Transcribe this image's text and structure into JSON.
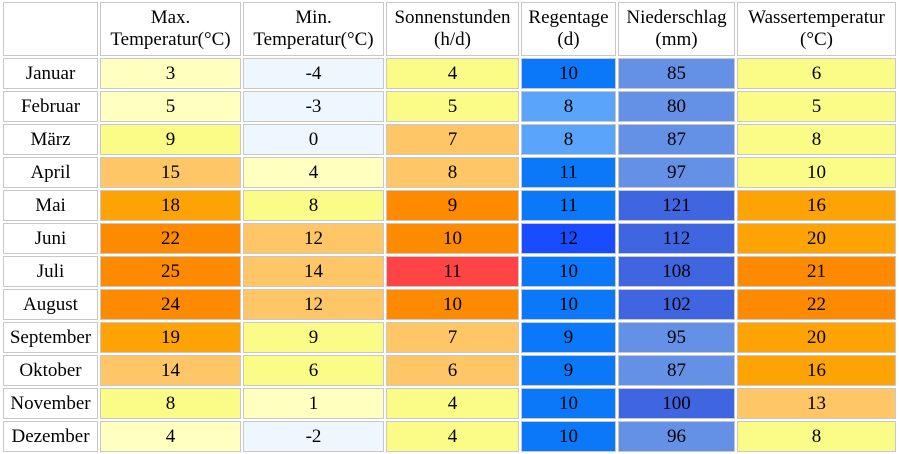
{
  "headers": [
    {
      "line1": "Max.",
      "line2": "Temperatur(°C)"
    },
    {
      "line1": "Min.",
      "line2": "Temperatur(°C)"
    },
    {
      "line1": "Sonnenstunden",
      "line2": "(h/d)"
    },
    {
      "line1": "Regentage",
      "line2": "(d)"
    },
    {
      "line1": "Niederschlag",
      "line2": "(mm)"
    },
    {
      "line1": "Wassertemperatur",
      "line2": "(°C)"
    }
  ],
  "rows": [
    {
      "month": "Januar",
      "cells": [
        {
          "v": "3",
          "c": "#ffffbf"
        },
        {
          "v": "-4",
          "c": "#eef6fe"
        },
        {
          "v": "4",
          "c": "#fbfb88"
        },
        {
          "v": "10",
          "c": "#0a78f8"
        },
        {
          "v": "85",
          "c": "#6491e6"
        },
        {
          "v": "6",
          "c": "#fbfb88"
        }
      ]
    },
    {
      "month": "Februar",
      "cells": [
        {
          "v": "5",
          "c": "#ffffbf"
        },
        {
          "v": "-3",
          "c": "#eef6fe"
        },
        {
          "v": "5",
          "c": "#fbfb88"
        },
        {
          "v": "8",
          "c": "#5aa5fb"
        },
        {
          "v": "80",
          "c": "#6491e6"
        },
        {
          "v": "5",
          "c": "#fbfb88"
        }
      ]
    },
    {
      "month": "März",
      "cells": [
        {
          "v": "9",
          "c": "#fbfb88"
        },
        {
          "v": "0",
          "c": "#eef6fe"
        },
        {
          "v": "7",
          "c": "#fec666"
        },
        {
          "v": "8",
          "c": "#5aa5fb"
        },
        {
          "v": "87",
          "c": "#6491e6"
        },
        {
          "v": "8",
          "c": "#fbfb88"
        }
      ]
    },
    {
      "month": "April",
      "cells": [
        {
          "v": "15",
          "c": "#fec666"
        },
        {
          "v": "4",
          "c": "#ffffbf"
        },
        {
          "v": "8",
          "c": "#fec666"
        },
        {
          "v": "11",
          "c": "#0a78f8"
        },
        {
          "v": "97",
          "c": "#6491e6"
        },
        {
          "v": "10",
          "c": "#fbfb88"
        }
      ]
    },
    {
      "month": "Mai",
      "cells": [
        {
          "v": "18",
          "c": "#fea305"
        },
        {
          "v": "8",
          "c": "#fbfb88"
        },
        {
          "v": "9",
          "c": "#fe8a00"
        },
        {
          "v": "11",
          "c": "#0a78f8"
        },
        {
          "v": "121",
          "c": "#3f66e0"
        },
        {
          "v": "16",
          "c": "#fea305"
        }
      ]
    },
    {
      "month": "Juni",
      "cells": [
        {
          "v": "22",
          "c": "#fe8a00"
        },
        {
          "v": "12",
          "c": "#fec666"
        },
        {
          "v": "10",
          "c": "#fe8a00"
        },
        {
          "v": "12",
          "c": "#1a4cff"
        },
        {
          "v": "112",
          "c": "#3f66e0"
        },
        {
          "v": "20",
          "c": "#fea305"
        }
      ]
    },
    {
      "month": "Juli",
      "cells": [
        {
          "v": "25",
          "c": "#fe8a00"
        },
        {
          "v": "14",
          "c": "#fec666"
        },
        {
          "v": "11",
          "c": "#fe4444"
        },
        {
          "v": "10",
          "c": "#0a78f8"
        },
        {
          "v": "108",
          "c": "#3f66e0"
        },
        {
          "v": "21",
          "c": "#fe8a00"
        }
      ]
    },
    {
      "month": "August",
      "cells": [
        {
          "v": "24",
          "c": "#fe8a00"
        },
        {
          "v": "12",
          "c": "#fec666"
        },
        {
          "v": "10",
          "c": "#fe8a00"
        },
        {
          "v": "10",
          "c": "#0a78f8"
        },
        {
          "v": "102",
          "c": "#3f66e0"
        },
        {
          "v": "22",
          "c": "#fe8a00"
        }
      ]
    },
    {
      "month": "September",
      "cells": [
        {
          "v": "19",
          "c": "#fea305"
        },
        {
          "v": "9",
          "c": "#fbfb88"
        },
        {
          "v": "7",
          "c": "#fec666"
        },
        {
          "v": "9",
          "c": "#0a78f8"
        },
        {
          "v": "95",
          "c": "#6491e6"
        },
        {
          "v": "20",
          "c": "#fea305"
        }
      ]
    },
    {
      "month": "Oktober",
      "cells": [
        {
          "v": "14",
          "c": "#fec666"
        },
        {
          "v": "6",
          "c": "#fbfb88"
        },
        {
          "v": "6",
          "c": "#fec666"
        },
        {
          "v": "9",
          "c": "#0a78f8"
        },
        {
          "v": "87",
          "c": "#6491e6"
        },
        {
          "v": "16",
          "c": "#fea305"
        }
      ]
    },
    {
      "month": "November",
      "cells": [
        {
          "v": "8",
          "c": "#fbfb88"
        },
        {
          "v": "1",
          "c": "#ffffbf"
        },
        {
          "v": "4",
          "c": "#fbfb88"
        },
        {
          "v": "10",
          "c": "#0a78f8"
        },
        {
          "v": "100",
          "c": "#3f66e0"
        },
        {
          "v": "13",
          "c": "#fec666"
        }
      ]
    },
    {
      "month": "Dezember",
      "cells": [
        {
          "v": "4",
          "c": "#ffffbf"
        },
        {
          "v": "-2",
          "c": "#eef6fe"
        },
        {
          "v": "4",
          "c": "#fbfb88"
        },
        {
          "v": "10",
          "c": "#0a78f8"
        },
        {
          "v": "96",
          "c": "#6491e6"
        },
        {
          "v": "8",
          "c": "#fbfb88"
        }
      ]
    }
  ]
}
